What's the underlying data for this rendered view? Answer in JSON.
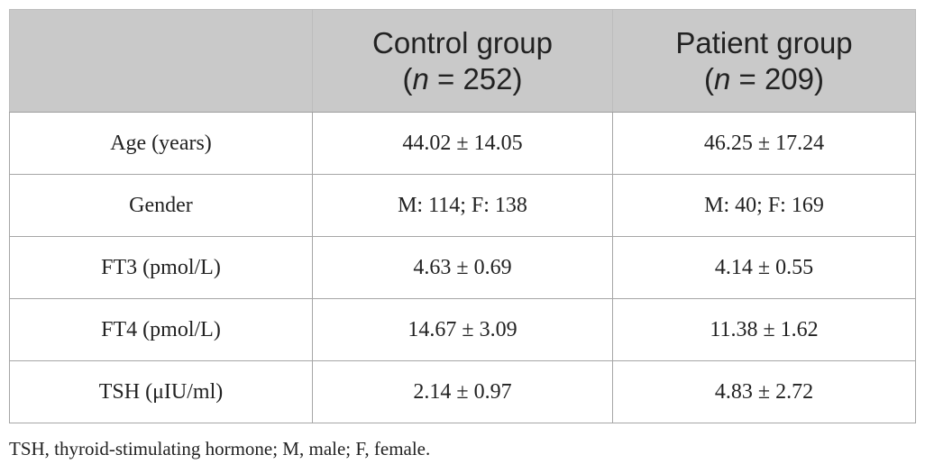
{
  "table": {
    "headers": [
      {
        "line1": "",
        "n_label": "",
        "n_value": ""
      },
      {
        "line1": "Control group",
        "n_label": "n",
        "n_value": " = 252)"
      },
      {
        "line1": "Patient group",
        "n_label": "n",
        "n_value": " = 209)"
      }
    ],
    "rows": [
      {
        "label": "Age (years)",
        "control": "44.02 ± 14.05",
        "patient": "46.25 ± 17.24"
      },
      {
        "label": "Gender",
        "control": "M: 114; F: 138",
        "patient": "M: 40; F: 169"
      },
      {
        "label": "FT3 (pmol/L)",
        "control": "4.63 ± 0.69",
        "patient": "4.14 ± 0.55"
      },
      {
        "label": "FT4 (pmol/L)",
        "control": "14.67 ± 3.09",
        "patient": "11.38 ± 1.62"
      },
      {
        "label": "TSH (μIU/ml)",
        "control": "2.14 ± 0.97",
        "patient": "4.83 ± 2.72"
      }
    ]
  },
  "footnote": "TSH, thyroid-stimulating hormone; M, male; F, female."
}
